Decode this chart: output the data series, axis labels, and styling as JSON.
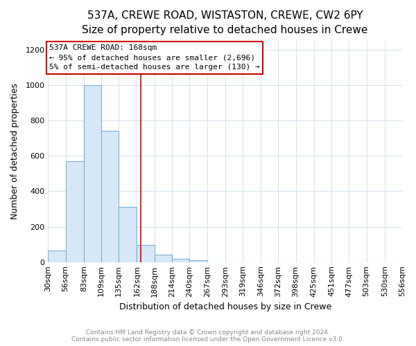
{
  "title": "537A, CREWE ROAD, WISTASTON, CREWE, CW2 6PY",
  "subtitle": "Size of property relative to detached houses in Crewe",
  "xlabel": "Distribution of detached houses by size in Crewe",
  "ylabel": "Number of detached properties",
  "bar_color": "#d6e8f7",
  "bar_edge_color": "#7aafd4",
  "bin_edges": [
    30,
    56,
    83,
    109,
    135,
    162,
    188,
    214,
    240,
    267,
    293,
    319,
    346,
    372,
    398,
    425,
    451,
    477,
    503,
    530,
    556
  ],
  "bin_labels": [
    "30sqm",
    "56sqm",
    "83sqm",
    "109sqm",
    "135sqm",
    "162sqm",
    "188sqm",
    "214sqm",
    "240sqm",
    "267sqm",
    "293sqm",
    "319sqm",
    "346sqm",
    "372sqm",
    "398sqm",
    "425sqm",
    "451sqm",
    "477sqm",
    "503sqm",
    "530sqm",
    "556sqm"
  ],
  "counts": [
    65,
    570,
    1000,
    740,
    310,
    95,
    42,
    18,
    10,
    0,
    0,
    0,
    0,
    0,
    0,
    0,
    0,
    0,
    0,
    0
  ],
  "property_line_x": 168,
  "property_line_color": "#cc0000",
  "annotation_line1": "537A CREWE ROAD: 168sqm",
  "annotation_line2": "← 95% of detached houses are smaller (2,696)",
  "annotation_line3": "5% of semi-detached houses are larger (130) →",
  "annotation_box_color": "#ffffff",
  "annotation_box_edge": "#cc0000",
  "ylim": [
    0,
    1250
  ],
  "yticks": [
    0,
    200,
    400,
    600,
    800,
    1000,
    1200
  ],
  "footer_text": "Contains HM Land Registry data © Crown copyright and database right 2024.\nContains public sector information licensed under the Open Government Licence v3.0.",
  "background_color": "#ffffff",
  "grid_color": "#d8e4ee",
  "title_fontsize": 11,
  "subtitle_fontsize": 9,
  "axis_label_fontsize": 9,
  "tick_fontsize": 8,
  "annotation_fontsize": 8,
  "footer_fontsize": 6.5
}
